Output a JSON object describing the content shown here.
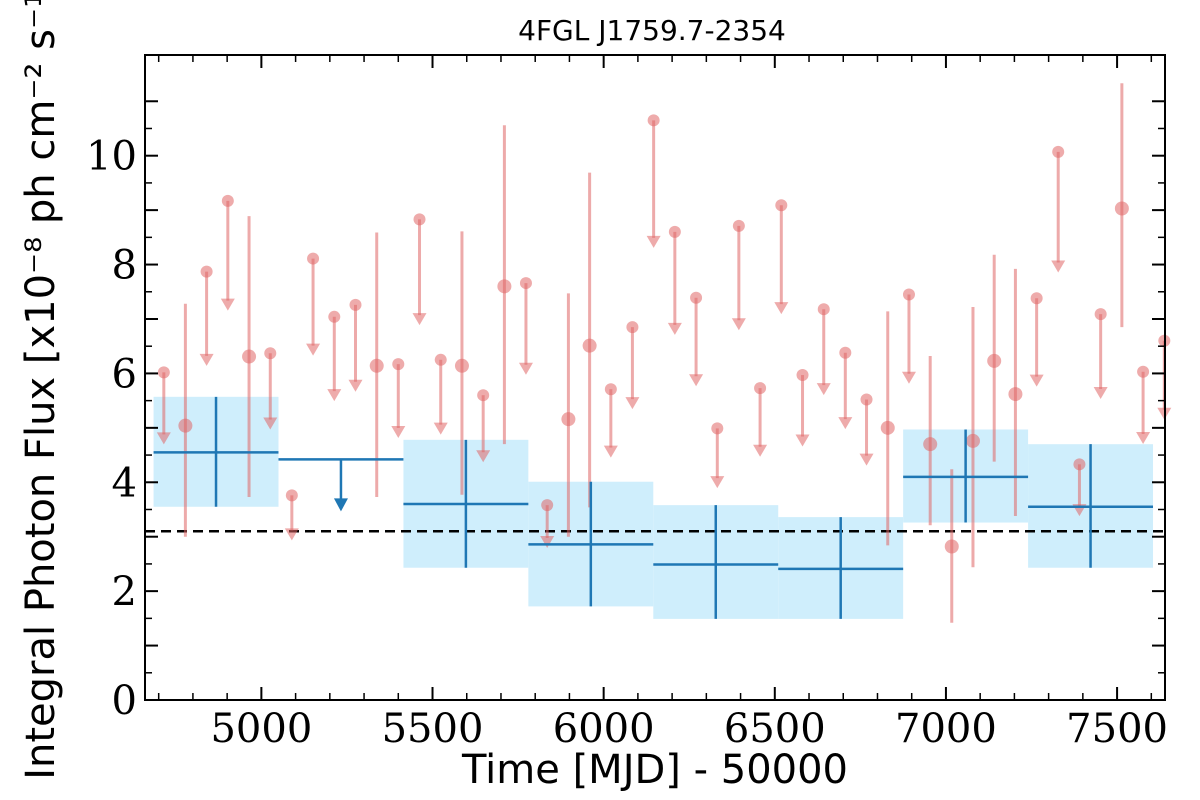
{
  "chart_data": {
    "type": "scatter",
    "title": "4FGL J1759.7-2354",
    "xlabel": "Time [MJD] - 50000",
    "ylabel": "Integral Photon Flux [x10⁻⁸ ph cm⁻² s⁻¹]",
    "xlim": [
      4660,
      7640
    ],
    "ylim": [
      0,
      11.85
    ],
    "x_ticks": [
      "5000",
      "5500",
      "6000",
      "6500",
      "7000",
      "7500"
    ],
    "y_ticks": [
      "0",
      "2",
      "4",
      "6",
      "8",
      "10"
    ],
    "reference_line": {
      "y": 3.1,
      "style": "dashed",
      "color": "#000000"
    },
    "series": [
      {
        "color": "#e06666",
        "bin_width": 62,
        "points": [
          {
            "x": 4715,
            "y": 6.02,
            "ul": true
          },
          {
            "x": 4778,
            "y": 5.04,
            "ul": false,
            "ylo": 3.0,
            "yhi": 7.28
          },
          {
            "x": 4840,
            "y": 7.87,
            "ul": true
          },
          {
            "x": 4902,
            "y": 9.17,
            "ul": true
          },
          {
            "x": 4964,
            "y": 6.31,
            "ul": false,
            "ylo": 3.73,
            "yhi": 8.89
          },
          {
            "x": 5026,
            "y": 6.37,
            "ul": true
          },
          {
            "x": 5089,
            "y": 3.76,
            "ul": true
          },
          {
            "x": 5151,
            "y": 8.11,
            "ul": true
          },
          {
            "x": 5213,
            "y": 7.04,
            "ul": true
          },
          {
            "x": 5275,
            "y": 7.26,
            "ul": true
          },
          {
            "x": 5337,
            "y": 6.14,
            "ul": false,
            "ylo": 3.73,
            "yhi": 8.59
          },
          {
            "x": 5400,
            "y": 6.17,
            "ul": true
          },
          {
            "x": 5462,
            "y": 8.83,
            "ul": true
          },
          {
            "x": 5524,
            "y": 6.25,
            "ul": true
          },
          {
            "x": 5586,
            "y": 6.14,
            "ul": false,
            "ylo": 3.77,
            "yhi": 8.61
          },
          {
            "x": 5648,
            "y": 5.6,
            "ul": true
          },
          {
            "x": 5710,
            "y": 7.6,
            "ul": false,
            "ylo": 4.7,
            "yhi": 10.56
          },
          {
            "x": 5773,
            "y": 7.66,
            "ul": true
          },
          {
            "x": 5835,
            "y": 3.58,
            "ul": true
          },
          {
            "x": 5897,
            "y": 5.16,
            "ul": false,
            "ylo": 3.0,
            "yhi": 7.47
          },
          {
            "x": 5959,
            "y": 6.51,
            "ul": false,
            "ylo": 3.54,
            "yhi": 9.69
          },
          {
            "x": 6021,
            "y": 5.71,
            "ul": true
          },
          {
            "x": 6084,
            "y": 6.85,
            "ul": true
          },
          {
            "x": 6146,
            "y": 10.65,
            "ul": true
          },
          {
            "x": 6208,
            "y": 8.6,
            "ul": true
          },
          {
            "x": 6270,
            "y": 7.39,
            "ul": true
          },
          {
            "x": 6332,
            "y": 4.99,
            "ul": true
          },
          {
            "x": 6395,
            "y": 8.71,
            "ul": true
          },
          {
            "x": 6457,
            "y": 5.73,
            "ul": true
          },
          {
            "x": 6519,
            "y": 9.09,
            "ul": true
          },
          {
            "x": 6581,
            "y": 5.97,
            "ul": true
          },
          {
            "x": 6643,
            "y": 7.18,
            "ul": true
          },
          {
            "x": 6706,
            "y": 6.38,
            "ul": true
          },
          {
            "x": 6768,
            "y": 5.52,
            "ul": true
          },
          {
            "x": 6830,
            "y": 5.0,
            "ul": false,
            "ylo": 2.84,
            "yhi": 7.14
          },
          {
            "x": 6892,
            "y": 7.45,
            "ul": true
          },
          {
            "x": 6954,
            "y": 4.7,
            "ul": false,
            "ylo": 3.21,
            "yhi": 6.32
          },
          {
            "x": 7017,
            "y": 2.82,
            "ul": false,
            "ylo": 1.42,
            "yhi": 4.24
          },
          {
            "x": 7079,
            "y": 4.76,
            "ul": false,
            "ylo": 2.44,
            "yhi": 7.22
          },
          {
            "x": 7141,
            "y": 6.23,
            "ul": false,
            "ylo": 4.38,
            "yhi": 8.18
          },
          {
            "x": 7203,
            "y": 5.62,
            "ul": false,
            "ylo": 3.38,
            "yhi": 7.92
          },
          {
            "x": 7265,
            "y": 7.38,
            "ul": true
          },
          {
            "x": 7328,
            "y": 10.07,
            "ul": true
          },
          {
            "x": 7390,
            "y": 4.33,
            "ul": true
          },
          {
            "x": 7452,
            "y": 7.09,
            "ul": true
          },
          {
            "x": 7514,
            "y": 9.03,
            "ul": false,
            "ylo": 6.85,
            "yhi": 11.33
          },
          {
            "x": 7576,
            "y": 6.03,
            "ul": true
          },
          {
            "x": 7638,
            "y": 6.6,
            "ul": true
          }
        ]
      },
      {
        "color": "#1f77b4",
        "band_color": "#cfeefc",
        "points": [
          {
            "x0": 4685,
            "x1": 5050,
            "y": 4.55,
            "ylo": 3.55,
            "yhi": 5.57,
            "ul": false
          },
          {
            "x0": 5050,
            "x1": 5415,
            "y": 4.42,
            "ul": true
          },
          {
            "x0": 5415,
            "x1": 5780,
            "y": 3.6,
            "ylo": 2.43,
            "yhi": 4.78,
            "ul": false
          },
          {
            "x0": 5780,
            "x1": 6145,
            "y": 2.86,
            "ylo": 1.72,
            "yhi": 4.01,
            "ul": false
          },
          {
            "x0": 6145,
            "x1": 6510,
            "y": 2.49,
            "ylo": 1.49,
            "yhi": 3.58,
            "ul": false
          },
          {
            "x0": 6510,
            "x1": 6875,
            "y": 2.41,
            "ylo": 1.49,
            "yhi": 3.36,
            "ul": false
          },
          {
            "x0": 6875,
            "x1": 7240,
            "y": 4.1,
            "ylo": 3.26,
            "yhi": 4.97,
            "ul": false
          },
          {
            "x0": 7240,
            "x1": 7605,
            "y": 3.55,
            "ylo": 2.43,
            "yhi": 4.7,
            "ul": false
          }
        ]
      }
    ]
  }
}
